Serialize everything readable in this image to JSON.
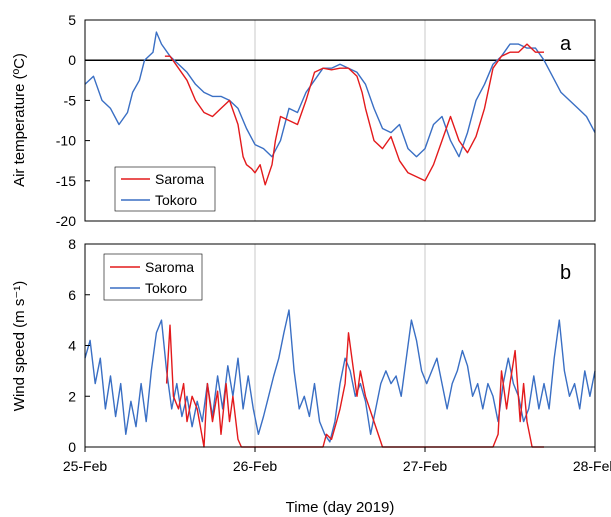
{
  "figure": {
    "xlabel": "Time (day 2019)"
  },
  "colors": {
    "saroma": "#e31a1c",
    "tokoro": "#3a6fc4",
    "grid": "#c8c8c8",
    "zero_line": "#000000"
  },
  "chart_data": [
    {
      "type": "line",
      "panel_label": "a",
      "ylabel": "Air temperature (ºC)",
      "xlabel": "",
      "ylim": [
        -20,
        5
      ],
      "yticks": [
        5,
        0,
        -5,
        -10,
        -15,
        -20
      ],
      "xlim": [
        0,
        3
      ],
      "x_unit": "days since 25-Feb",
      "xtick_positions": [
        0,
        1,
        2,
        3
      ],
      "xtick_labels": [
        "25-Feb",
        "26-Feb",
        "27-Feb",
        "28-Feb"
      ],
      "grid": "vertical",
      "legend_position": "bottom-left",
      "reference_line_y": 0,
      "series": [
        {
          "name": "Saroma",
          "color_key": "saroma",
          "x": [
            0.47,
            0.5,
            0.55,
            0.6,
            0.65,
            0.7,
            0.75,
            0.8,
            0.85,
            0.9,
            0.93,
            0.95,
            0.98,
            1.0,
            1.03,
            1.06,
            1.1,
            1.12,
            1.15,
            1.2,
            1.25,
            1.3,
            1.35,
            1.4,
            1.45,
            1.5,
            1.55,
            1.6,
            1.63,
            1.65,
            1.7,
            1.75,
            1.8,
            1.85,
            1.9,
            1.95,
            2.0,
            2.05,
            2.1,
            2.15,
            2.2,
            2.25,
            2.3,
            2.35,
            2.38,
            2.4,
            2.45,
            2.5,
            2.55,
            2.6,
            2.65,
            2.7
          ],
          "y": [
            0.5,
            0.5,
            -1,
            -2.5,
            -5,
            -6.5,
            -7,
            -6,
            -5,
            -8,
            -12,
            -13,
            -13.5,
            -14,
            -13,
            -15.5,
            -13,
            -10,
            -7,
            -7.5,
            -8,
            -5,
            -1.5,
            -1,
            -1.2,
            -1,
            -1,
            -2,
            -4,
            -6,
            -10,
            -11,
            -9.5,
            -12.5,
            -14,
            -14.5,
            -15,
            -13,
            -10,
            -7,
            -10,
            -11.5,
            -9.5,
            -6,
            -3,
            -1,
            0.5,
            1,
            1,
            2,
            1,
            1
          ]
        },
        {
          "name": "Tokoro",
          "color_key": "tokoro",
          "x": [
            0,
            0.05,
            0.1,
            0.15,
            0.2,
            0.25,
            0.28,
            0.32,
            0.35,
            0.4,
            0.42,
            0.45,
            0.5,
            0.55,
            0.6,
            0.65,
            0.7,
            0.75,
            0.8,
            0.85,
            0.9,
            0.95,
            1.0,
            1.05,
            1.1,
            1.15,
            1.2,
            1.25,
            1.3,
            1.35,
            1.4,
            1.45,
            1.5,
            1.55,
            1.6,
            1.65,
            1.7,
            1.75,
            1.8,
            1.85,
            1.9,
            1.95,
            2.0,
            2.05,
            2.1,
            2.15,
            2.2,
            2.25,
            2.3,
            2.35,
            2.4,
            2.45,
            2.5,
            2.55,
            2.6,
            2.65,
            2.7,
            2.75,
            2.8,
            2.85,
            2.9,
            2.95,
            3.0
          ],
          "y": [
            -3,
            -2,
            -5,
            -6,
            -8,
            -6.5,
            -4,
            -2.5,
            0,
            1,
            3.5,
            2,
            0.5,
            -0.5,
            -1.5,
            -3,
            -4,
            -4.5,
            -4.5,
            -5,
            -6,
            -8.5,
            -10.5,
            -11,
            -12,
            -10,
            -6,
            -6.5,
            -4,
            -2.5,
            -1,
            -1,
            -0.5,
            -1,
            -1.5,
            -3,
            -6,
            -8.5,
            -9,
            -8,
            -11,
            -12,
            -11,
            -8,
            -7,
            -10,
            -12,
            -9,
            -5,
            -3,
            -0.5,
            0.5,
            2,
            2,
            1.5,
            1.5,
            0,
            -2,
            -4,
            -5,
            -6,
            -7,
            -9
          ]
        }
      ]
    },
    {
      "type": "line",
      "panel_label": "b",
      "ylabel": "Wind speed (m s⁻¹)",
      "xlabel": "Time (day 2019)",
      "ylim": [
        0,
        8
      ],
      "yticks": [
        8,
        6,
        4,
        2,
        0
      ],
      "xlim": [
        0,
        3
      ],
      "x_unit": "days since 25-Feb",
      "xtick_positions": [
        0,
        1,
        2,
        3
      ],
      "xtick_labels": [
        "25-Feb",
        "26-Feb",
        "27-Feb",
        "28-Feb"
      ],
      "grid": "vertical",
      "legend_position": "top-left",
      "series": [
        {
          "name": "Saroma",
          "color_key": "saroma",
          "x": [
            0.48,
            0.5,
            0.52,
            0.55,
            0.58,
            0.6,
            0.63,
            0.66,
            0.7,
            0.72,
            0.75,
            0.78,
            0.8,
            0.83,
            0.85,
            0.87,
            0.9,
            0.92,
            0.95,
            1.0,
            1.05,
            1.1,
            1.15,
            1.2,
            1.25,
            1.3,
            1.35,
            1.4,
            1.42,
            1.45,
            1.48,
            1.5,
            1.53,
            1.55,
            1.57,
            1.6,
            1.62,
            1.65,
            1.7,
            1.75,
            1.8,
            1.85,
            1.9,
            1.95,
            2.0,
            2.05,
            2.1,
            2.15,
            2.2,
            2.25,
            2.3,
            2.35,
            2.4,
            2.43,
            2.45,
            2.48,
            2.5,
            2.53,
            2.56,
            2.58,
            2.6,
            2.63,
            2.66,
            2.7
          ],
          "y": [
            2.5,
            4.8,
            2,
            1.5,
            2.5,
            1,
            2,
            1.5,
            0,
            2.5,
            1,
            2.2,
            0.5,
            2.5,
            1,
            2,
            0.3,
            0,
            0,
            0,
            0,
            0,
            0,
            0,
            0,
            0,
            0,
            0,
            0.5,
            0.3,
            1,
            1.5,
            2.5,
            4.5,
            3.5,
            2,
            3,
            2,
            1,
            0,
            0,
            0,
            0,
            0,
            0,
            0,
            0,
            0,
            0,
            0,
            0,
            0,
            0,
            0.5,
            3,
            1.5,
            2.5,
            3.8,
            1,
            2.5,
            1,
            0,
            0,
            0
          ]
        },
        {
          "name": "Tokoro",
          "color_key": "tokoro",
          "x": [
            0,
            0.03,
            0.06,
            0.09,
            0.12,
            0.15,
            0.18,
            0.21,
            0.24,
            0.27,
            0.3,
            0.33,
            0.36,
            0.39,
            0.42,
            0.45,
            0.48,
            0.51,
            0.54,
            0.57,
            0.6,
            0.63,
            0.66,
            0.69,
            0.72,
            0.75,
            0.78,
            0.81,
            0.84,
            0.87,
            0.9,
            0.93,
            0.96,
            0.99,
            1.02,
            1.05,
            1.08,
            1.11,
            1.14,
            1.17,
            1.2,
            1.23,
            1.26,
            1.29,
            1.32,
            1.35,
            1.38,
            1.41,
            1.44,
            1.47,
            1.5,
            1.53,
            1.56,
            1.59,
            1.62,
            1.65,
            1.68,
            1.71,
            1.74,
            1.77,
            1.8,
            1.83,
            1.86,
            1.89,
            1.92,
            1.95,
            1.98,
            2.01,
            2.04,
            2.07,
            2.1,
            2.13,
            2.16,
            2.19,
            2.22,
            2.25,
            2.28,
            2.31,
            2.34,
            2.37,
            2.4,
            2.43,
            2.46,
            2.49,
            2.52,
            2.55,
            2.58,
            2.61,
            2.64,
            2.67,
            2.7,
            2.73,
            2.76,
            2.79,
            2.82,
            2.85,
            2.88,
            2.91,
            2.94,
            2.97,
            3.0
          ],
          "y": [
            3.5,
            4.2,
            2.5,
            3.5,
            1.5,
            2.8,
            1.2,
            2.5,
            0.5,
            1.8,
            0.8,
            2.5,
            1,
            3,
            4.5,
            5,
            3,
            1.5,
            2.5,
            1.2,
            2,
            0.8,
            1.8,
            1,
            2.5,
            1.2,
            2.8,
            1.5,
            3.2,
            2,
            3.5,
            1.5,
            2.8,
            1.5,
            0.5,
            1.2,
            2,
            2.8,
            3.5,
            4.5,
            5.4,
            3,
            1.5,
            2,
            1.2,
            2.5,
            1,
            0.5,
            0.2,
            1,
            2.5,
            3.5,
            3,
            2,
            2.5,
            1.8,
            0.5,
            1.5,
            2.5,
            3,
            2.5,
            2.8,
            2,
            3.5,
            5,
            4.2,
            3,
            2.5,
            3,
            3.5,
            2.5,
            1.5,
            2.5,
            3,
            3.8,
            3.2,
            2,
            2.5,
            1.5,
            2.5,
            2,
            1,
            2.5,
            3.5,
            2.5,
            2,
            1,
            1.5,
            2.8,
            1.5,
            2.5,
            1.5,
            3.5,
            5,
            3,
            2,
            2.5,
            1.5,
            3,
            2,
            3
          ]
        }
      ]
    }
  ]
}
